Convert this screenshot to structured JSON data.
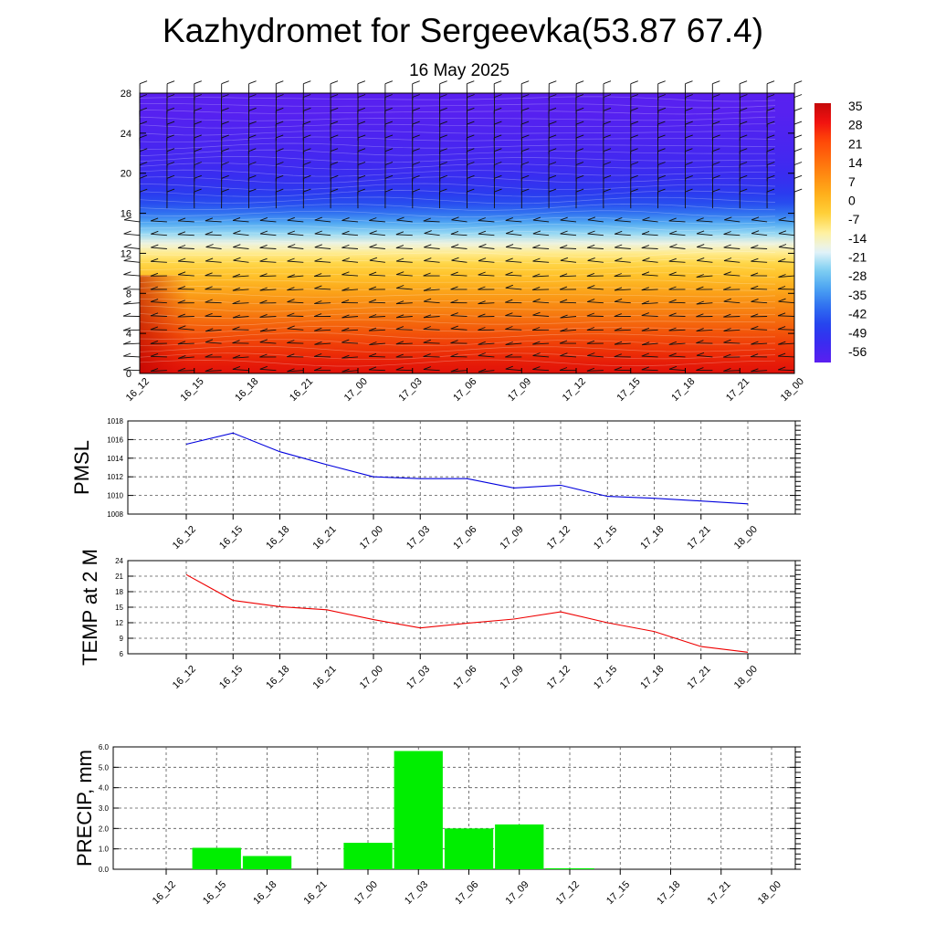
{
  "header": {
    "title": "Kazhydromet for Sergeevka(53.87 67.4)",
    "date": "16 May 2025"
  },
  "chart_data": [
    {
      "id": "temperature-cross-section",
      "type": "heatmap",
      "x_tick_labels": [
        "16_12",
        "16_15",
        "16_18",
        "16_21",
        "17_00",
        "17_03",
        "17_06",
        "17_09",
        "17_12",
        "17_15",
        "17_18",
        "17_21",
        "18_00"
      ],
      "y_ticks": [
        0,
        4,
        8,
        12,
        16,
        20,
        24,
        28
      ],
      "ylim": [
        0,
        28
      ],
      "colorbar_labels": [
        "35",
        "28",
        "21",
        "14",
        "7",
        "0",
        "-7",
        "-14",
        "-21",
        "-28",
        "-35",
        "-42",
        "-49",
        "-56"
      ],
      "colorbar_range": [
        -63,
        42
      ],
      "colors": {
        "ramp": [
          "#5b1ff0",
          "#3b2bf0",
          "#2541ee",
          "#2f6ef0",
          "#4ba3f2",
          "#7fd0f2",
          "#e6f4f8",
          "#fff1a0",
          "#ffd23a",
          "#ffb21c",
          "#ff8f12",
          "#ff6a0c",
          "#ff4608",
          "#f01010",
          "#c50a0a"
        ],
        "temp_profile_bottom_to_top": [
          33,
          31,
          28,
          24,
          20,
          16,
          12,
          9,
          6,
          3,
          0,
          -4,
          -9,
          -16,
          -24,
          -32,
          -40,
          -46,
          -50,
          -53,
          -55,
          -57,
          -58,
          -59,
          -60,
          -61,
          -62,
          -62,
          -63
        ]
      }
    },
    {
      "id": "pmsl",
      "type": "line",
      "ylabel": "PMSL",
      "x_tick_labels": [
        "16_12",
        "16_15",
        "16_18",
        "16_21",
        "17_00",
        "17_03",
        "17_06",
        "17_09",
        "17_12",
        "17_15",
        "17_18",
        "17_21",
        "18_00"
      ],
      "y_ticks": [
        1008,
        1010,
        1012,
        1014,
        1016,
        1018
      ],
      "ylim": [
        1008,
        1018
      ],
      "values": [
        1015.5,
        1016.7,
        1014.7,
        1013.3,
        1012.0,
        1011.8,
        1011.8,
        1010.8,
        1011.1,
        1009.9,
        1009.7,
        1009.4,
        1009.1
      ],
      "color": "#0000dd"
    },
    {
      "id": "temp-2m",
      "type": "line",
      "ylabel": "TEMP at 2 M",
      "x_tick_labels": [
        "16_12",
        "16_15",
        "16_18",
        "16_21",
        "17_00",
        "17_03",
        "17_06",
        "17_09",
        "17_12",
        "17_15",
        "17_18",
        "17_21",
        "18_00"
      ],
      "y_ticks": [
        6,
        9,
        12,
        15,
        18,
        21,
        24
      ],
      "ylim": [
        6,
        24
      ],
      "values": [
        21.3,
        16.3,
        15.1,
        14.5,
        12.6,
        11.0,
        11.9,
        12.7,
        14.1,
        12.0,
        10.3,
        7.4,
        6.3
      ],
      "color": "#ee0000"
    },
    {
      "id": "precip",
      "type": "bar",
      "ylabel": "PRECIP, mm",
      "categories": [
        "16_12",
        "16_15",
        "16_18",
        "16_21",
        "17_00",
        "17_03",
        "17_06",
        "17_09",
        "17_12",
        "17_15",
        "17_18",
        "17_21",
        "18_00"
      ],
      "y_tick_labels": [
        "0.0",
        "1.0",
        "2.0",
        "3.0",
        "4.0",
        "5.0",
        "6.0"
      ],
      "ylim": [
        0,
        6
      ],
      "values": [
        0,
        1.05,
        0.65,
        0,
        1.3,
        5.8,
        2.0,
        2.2,
        0.05,
        0,
        0,
        0,
        0
      ],
      "color": "#00ee00"
    }
  ]
}
